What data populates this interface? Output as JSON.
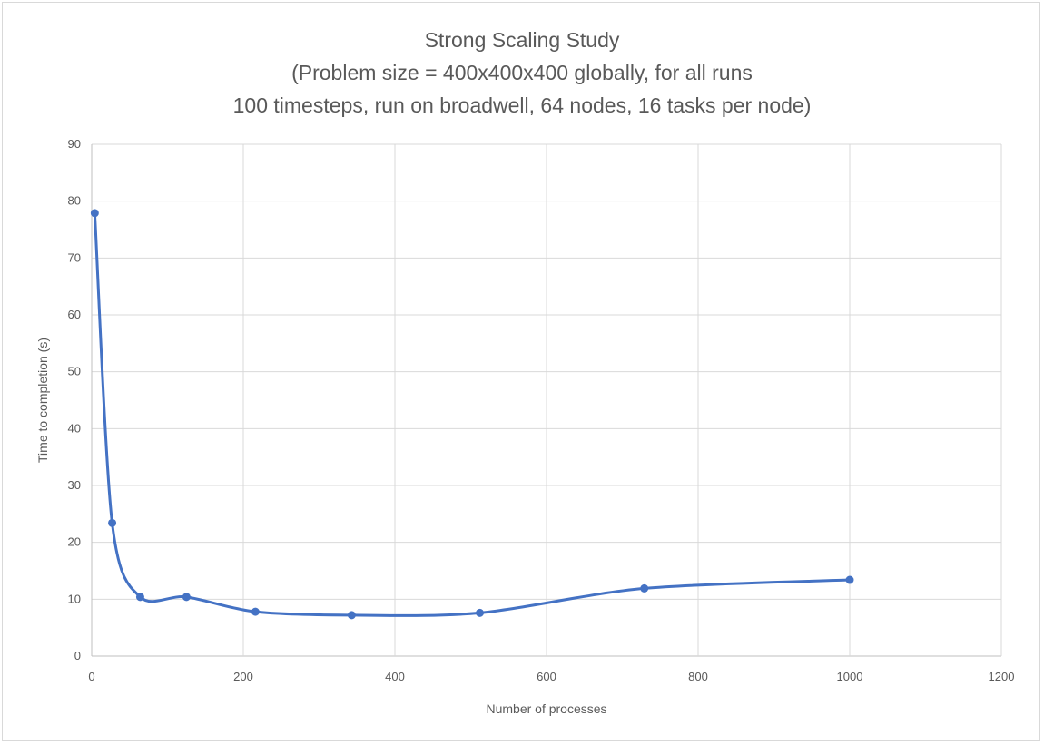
{
  "chart_data": {
    "type": "line",
    "title_lines": [
      "Strong Scaling Study",
      "(Problem size = 400x400x400 globally, for all runs",
      "100 timesteps, run on broadwell, 64 nodes, 16 tasks per node)"
    ],
    "xlabel": "Number of processes",
    "ylabel": "Time to completion (s)",
    "xlim": [
      0,
      1200
    ],
    "ylim": [
      0,
      90
    ],
    "x_ticks": [
      0,
      200,
      400,
      600,
      800,
      1000,
      1200
    ],
    "y_ticks": [
      0,
      10,
      20,
      30,
      40,
      50,
      60,
      70,
      80,
      90
    ],
    "grid": true,
    "legend": "none",
    "series": [
      {
        "color": "#4472c4",
        "x": [
          4,
          27,
          64,
          125,
          216,
          343,
          512,
          729,
          1000
        ],
        "y": [
          77.9,
          23.4,
          10.4,
          10.4,
          7.8,
          7.2,
          7.6,
          11.9,
          13.4
        ]
      }
    ]
  }
}
